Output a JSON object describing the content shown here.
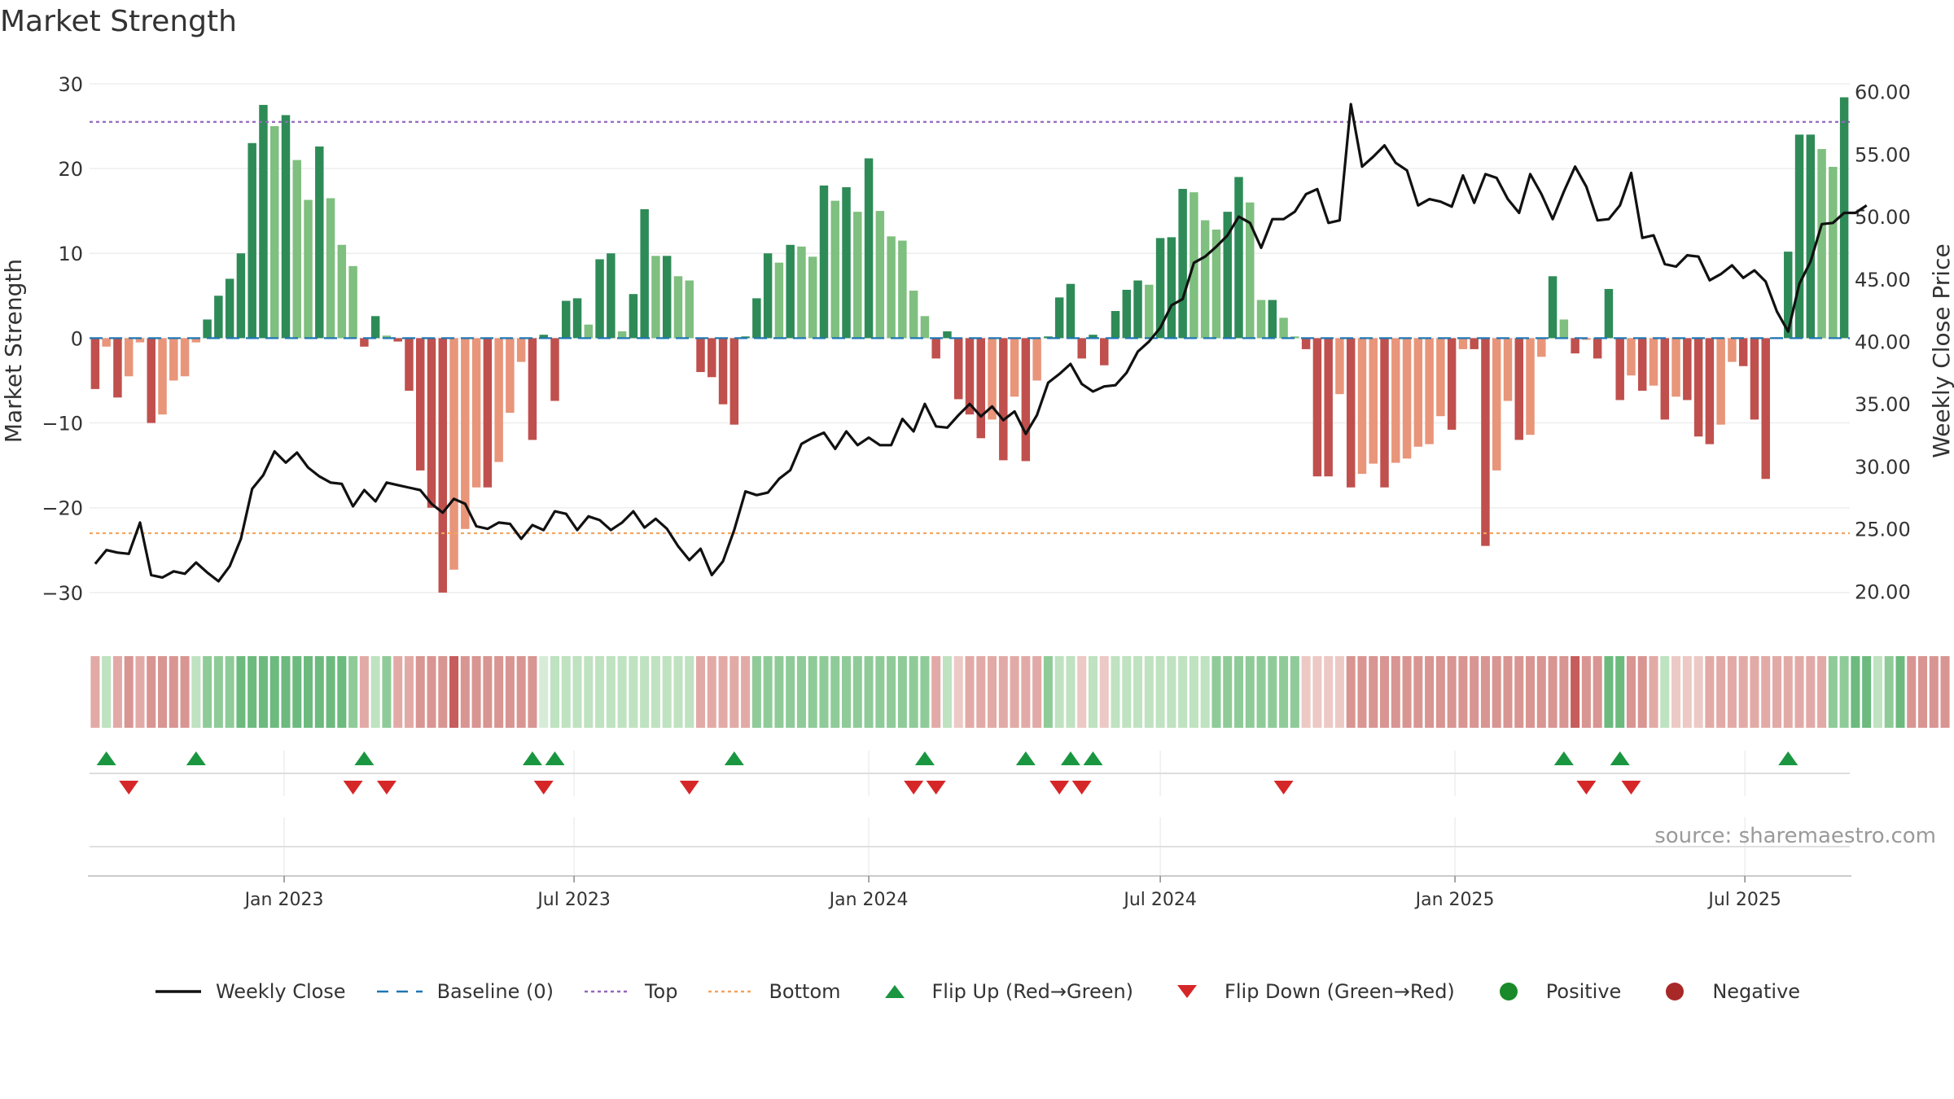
{
  "title": "Market Strength",
  "source": "source: sharemaestro.com",
  "colors": {
    "pos_dark": "#2e8b57",
    "pos_light": "#7fbf7f",
    "neg_dark": "#c0504d",
    "neg_light": "#e8957a",
    "price_line": "#111111",
    "baseline": "#1f77b4",
    "top_line": "#9467bd",
    "bottom_line": "#f4a460",
    "flip_up": "#1a9641",
    "flip_down": "#d62728",
    "positive_dot": "#1a8a2a",
    "negative_dot": "#a82828"
  },
  "chart_data": {
    "type": "bar",
    "title": "Market Strength",
    "ylabel": "Market Strength",
    "y2label": "Weekly Close Price",
    "ylim": [
      -35,
      32
    ],
    "y2lim": [
      16.5,
      62.0
    ],
    "yticks": [
      30,
      20,
      10,
      0,
      -10,
      -20,
      -30
    ],
    "yticklabels": [
      "30",
      "20",
      "10",
      "0",
      "−10",
      "−20",
      "−30"
    ],
    "y2ticks": [
      60,
      55,
      50,
      45,
      40,
      35,
      30,
      25,
      20
    ],
    "y2ticklabels": [
      "60.00",
      "55.00",
      "50.00",
      "45.00",
      "40.00",
      "35.00",
      "30.00",
      "25.00",
      "20.00"
    ],
    "top_level": 25.5,
    "bottom_level": -23,
    "baseline": 0,
    "start_date": "2022-09-05",
    "week_step_days": 7,
    "x_range": [
      "2022-08-29",
      "2025-09-29"
    ],
    "xticks": [
      "2023-01-01",
      "2023-07-01",
      "2024-01-01",
      "2024-07-01",
      "2025-01-01",
      "2025-07-01"
    ],
    "xticklabels": [
      "Jan 2023",
      "Jul 2023",
      "Jan 2024",
      "Jul 2024",
      "Jan 2025",
      "Jul 2025"
    ],
    "strength": [
      -6,
      -1,
      -7,
      -4.5,
      -0.5,
      -10,
      -9,
      -5,
      -4.5,
      -0.5,
      2.2,
      5,
      7,
      10,
      23,
      27.5,
      25,
      26.3,
      21,
      16.3,
      22.6,
      16.5,
      11,
      8.5,
      -1,
      2.6,
      0.3,
      -0.4,
      -6.2,
      -15.6,
      -20,
      -30,
      -27.3,
      -22.5,
      -17.6,
      -17.6,
      -14.6,
      -8.8,
      -2.8,
      -12,
      0.4,
      -7.4,
      4.4,
      4.7,
      1.6,
      9.3,
      10,
      0.8,
      5.2,
      15.2,
      9.7,
      9.7,
      7.3,
      6.8,
      -4,
      -4.6,
      -7.8,
      -10.2,
      0.2,
      4.7,
      10,
      8.9,
      11,
      10.8,
      9.6,
      18,
      16.2,
      17.8,
      14.9,
      21.2,
      15,
      12,
      11.5,
      5.6,
      2.6,
      -2.4,
      0.8,
      -7.2,
      -9,
      -11.8,
      -9.6,
      -14.4,
      -6.9,
      -14.5,
      -5,
      0.2,
      4.8,
      6.4,
      -2.4,
      0.4,
      -3.2,
      3.2,
      5.7,
      6.8,
      6.3,
      11.8,
      11.9,
      17.6,
      17.2,
      13.9,
      12.8,
      14.9,
      19,
      16,
      4.5,
      4.5,
      2.4,
      0.2,
      -1.3,
      -16.3,
      -16.3,
      -6.6,
      -17.6,
      -16,
      -14.8,
      -17.6,
      -14.7,
      -14.2,
      -12.8,
      -12.5,
      -9.2,
      -10.8,
      -1.3,
      -1.3,
      -24.5,
      -15.6,
      -7.4,
      -12,
      -11.4,
      -2.2,
      7.3,
      2.2,
      -1.8,
      -0.2,
      -2.4,
      5.8,
      -7.3,
      -4.4,
      -6.2,
      -5.6,
      -9.6,
      -6.9,
      -7.3,
      -11.6,
      -12.5,
      -10.2,
      -2.8,
      -3.3,
      -9.6,
      -16.6,
      0.1,
      10.2,
      24,
      24,
      22.3,
      20.2,
      28.4
    ],
    "price": [
      22.2,
      23.3,
      23.1,
      23.0,
      25.5,
      21.3,
      21.1,
      21.6,
      21.4,
      22.3,
      21.5,
      20.8,
      22.0,
      24.2,
      28.2,
      29.3,
      31.2,
      30.3,
      31.1,
      29.9,
      29.2,
      28.7,
      28.6,
      26.8,
      28.1,
      27.2,
      28.7,
      28.5,
      28.3,
      28.1,
      27.0,
      26.3,
      27.4,
      27.0,
      25.2,
      25.0,
      25.5,
      25.4,
      24.2,
      25.3,
      24.9,
      26.4,
      26.2,
      24.9,
      26.0,
      25.7,
      24.9,
      25.5,
      26.4,
      25.1,
      25.8,
      25.0,
      23.6,
      22.5,
      23.4,
      21.3,
      22.4,
      24.9,
      28.0,
      27.7,
      27.9,
      29.0,
      29.7,
      31.8,
      32.3,
      32.7,
      31.4,
      32.8,
      31.7,
      32.3,
      31.7,
      31.7,
      33.8,
      32.8,
      35.0,
      33.2,
      33.1,
      34.1,
      35.0,
      34.0,
      34.8,
      33.7,
      34.4,
      32.6,
      34.1,
      36.7,
      37.4,
      38.2,
      36.6,
      36.0,
      36.4,
      36.5,
      37.5,
      39.2,
      40.0,
      41.1,
      42.9,
      43.4,
      46.3,
      46.8,
      47.6,
      48.5,
      50.0,
      49.5,
      47.5,
      49.8,
      49.8,
      50.4,
      51.8,
      52.2,
      49.5,
      49.7,
      59.0,
      54.0,
      54.8,
      55.7,
      54.3,
      53.7,
      50.9,
      51.4,
      51.2,
      50.8,
      53.3,
      51.1,
      53.4,
      53.1,
      51.4,
      50.3,
      53.4,
      51.8,
      49.8,
      52.0,
      54.0,
      52.4,
      49.7,
      49.8,
      50.9,
      53.5,
      48.3,
      48.5,
      46.2,
      46.0,
      46.9,
      46.8,
      44.9,
      45.4,
      46.1,
      45.1,
      45.7,
      44.8,
      42.4,
      40.8,
      44.6,
      46.4,
      49.4,
      49.5,
      50.3,
      50.3,
      50.9
    ],
    "strip_shades": [
      2,
      1,
      2,
      3,
      2,
      3,
      3,
      3,
      3,
      1,
      2,
      2,
      2,
      3,
      3,
      3,
      3,
      3,
      3,
      3,
      3,
      3,
      3,
      2,
      2,
      1,
      2,
      2,
      2,
      3,
      3,
      3,
      4,
      3,
      3,
      3,
      3,
      3,
      3,
      3,
      0,
      1,
      1,
      1,
      1,
      1,
      1,
      1,
      1,
      1,
      1,
      1,
      1,
      1,
      2,
      2,
      2,
      2,
      2,
      2,
      2,
      2,
      2,
      2,
      2,
      2,
      2,
      2,
      2,
      2,
      2,
      2,
      2,
      2,
      2,
      2,
      1,
      1,
      2,
      2,
      2,
      2,
      2,
      2,
      2,
      2,
      1,
      1,
      1,
      1,
      1,
      1,
      1,
      1,
      1,
      1,
      1,
      1,
      1,
      1,
      2,
      2,
      2,
      2,
      2,
      2,
      2,
      2,
      1,
      1,
      1,
      1,
      3,
      3,
      3,
      3,
      3,
      3,
      3,
      3,
      3,
      3,
      3,
      3,
      3,
      3,
      3,
      3,
      3,
      3,
      3,
      3,
      4,
      3,
      3,
      3,
      3,
      3,
      3,
      2,
      1,
      1,
      1,
      1,
      2,
      2,
      2,
      2,
      2,
      2,
      2,
      2,
      2,
      2,
      2,
      2,
      2,
      3,
      3,
      1,
      2,
      3,
      3,
      3,
      3,
      3
    ],
    "strip_signs": [
      "neg",
      "pos",
      "neg",
      "neg",
      "neg",
      "neg",
      "neg",
      "neg",
      "neg",
      "pos",
      "pos",
      "pos",
      "pos",
      "pos",
      "pos",
      "pos",
      "pos",
      "pos",
      "pos",
      "pos",
      "pos",
      "pos",
      "pos",
      "pos",
      "neg",
      "pos",
      "pos",
      "neg",
      "neg",
      "neg",
      "neg",
      "neg",
      "neg",
      "neg",
      "neg",
      "neg",
      "neg",
      "neg",
      "neg",
      "neg",
      "pos",
      "pos",
      "pos",
      "pos",
      "pos",
      "pos",
      "pos",
      "pos",
      "pos",
      "pos",
      "pos",
      "pos",
      "pos",
      "pos",
      "neg",
      "neg",
      "neg",
      "neg",
      "neg",
      "pos",
      "pos",
      "pos",
      "pos",
      "pos",
      "pos",
      "pos",
      "pos",
      "pos",
      "pos",
      "pos",
      "pos",
      "pos",
      "pos",
      "pos",
      "pos",
      "neg",
      "pos",
      "neg",
      "neg",
      "neg",
      "neg",
      "neg",
      "neg",
      "neg",
      "neg",
      "pos",
      "pos",
      "pos",
      "neg",
      "pos",
      "neg",
      "pos",
      "pos",
      "pos",
      "pos",
      "pos",
      "pos",
      "pos",
      "pos",
      "pos",
      "pos",
      "pos",
      "pos",
      "pos",
      "pos",
      "pos",
      "pos",
      "pos",
      "neg",
      "neg",
      "neg",
      "neg",
      "neg",
      "neg",
      "neg",
      "neg",
      "neg",
      "neg",
      "neg",
      "neg",
      "neg",
      "neg",
      "neg",
      "neg",
      "neg",
      "neg",
      "neg",
      "neg",
      "neg",
      "neg",
      "neg",
      "neg",
      "neg",
      "neg",
      "neg",
      "pos",
      "pos",
      "neg",
      "neg",
      "neg",
      "pos",
      "neg",
      "neg",
      "neg",
      "neg",
      "neg",
      "neg",
      "neg",
      "neg",
      "neg",
      "neg",
      "neg",
      "neg",
      "neg",
      "neg",
      "pos",
      "pos",
      "pos",
      "pos",
      "pos",
      "pos",
      "pos"
    ],
    "flip_up_weeks": [
      1,
      9,
      24,
      39,
      41,
      57,
      74,
      83,
      87,
      89,
      131,
      136,
      151
    ],
    "flip_down_weeks": [
      3,
      23,
      26,
      40,
      53,
      73,
      75,
      86,
      88,
      106,
      133,
      137
    ]
  },
  "legend": [
    {
      "label": "Weekly Close",
      "kind": "line-solid",
      "color": "#111111"
    },
    {
      "label": "Baseline (0)",
      "kind": "line-dashed",
      "color": "#1f77b4"
    },
    {
      "label": "Top",
      "kind": "line-dotted",
      "color": "#9467bd"
    },
    {
      "label": "Bottom",
      "kind": "line-dotted",
      "color": "#f4a460"
    },
    {
      "label": "Flip Up (Red→Green)",
      "kind": "triangle-up",
      "color": "#1a9641"
    },
    {
      "label": "Flip Down (Green→Red)",
      "kind": "triangle-down",
      "color": "#d62728"
    },
    {
      "label": "Positive",
      "kind": "dot",
      "color": "#1a8a2a"
    },
    {
      "label": "Negative",
      "kind": "dot",
      "color": "#a82828"
    }
  ]
}
